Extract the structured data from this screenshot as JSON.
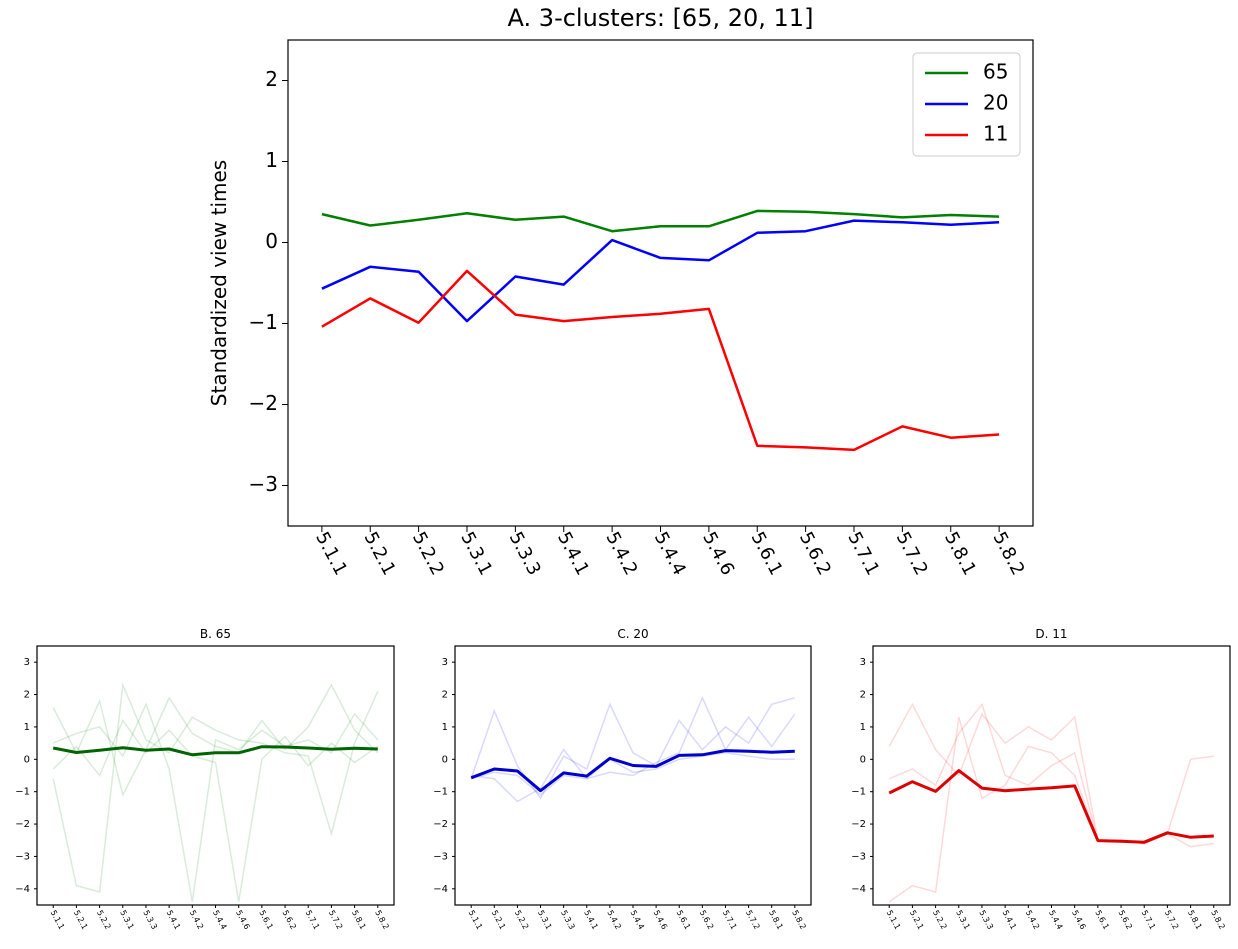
{
  "chart_data": [
    {
      "type": "line",
      "title": "A. 3-clusters: [65, 20, 11]",
      "ylabel": "Standardized view times",
      "categories": [
        "5.1.1",
        "5.2.1",
        "5.2.2",
        "5.3.1",
        "5.3.3",
        "5.4.1",
        "5.4.2",
        "5.4.4",
        "5.4.6",
        "5.6.1",
        "5.6.2",
        "5.7.1",
        "5.7.2",
        "5.8.1",
        "5.8.2"
      ],
      "ylim": [
        -3.5,
        2.5
      ],
      "yticks": [
        {
          "value": -3,
          "label": "−3"
        },
        {
          "value": -2,
          "label": "−2"
        },
        {
          "value": -1,
          "label": "−1"
        },
        0,
        1,
        2
      ],
      "legend": "upper right",
      "series": [
        {
          "name": "65",
          "color": "#008000",
          "values": [
            0.35,
            0.21,
            0.28,
            0.36,
            0.28,
            0.32,
            0.14,
            0.2,
            0.2,
            0.39,
            0.38,
            0.35,
            0.31,
            0.34,
            0.32
          ]
        },
        {
          "name": "20",
          "color": "#0000ff",
          "values": [
            -0.57,
            -0.3,
            -0.36,
            -0.97,
            -0.42,
            -0.52,
            0.03,
            -0.19,
            -0.22,
            0.12,
            0.14,
            0.27,
            0.25,
            0.22,
            0.25
          ]
        },
        {
          "name": "11",
          "color": "#ff0000",
          "values": [
            -1.04,
            -0.69,
            -0.99,
            -0.35,
            -0.89,
            -0.97,
            -0.92,
            -0.88,
            -0.82,
            -2.51,
            -2.53,
            -2.56,
            -2.27,
            -2.41,
            -2.37
          ]
        }
      ]
    },
    {
      "type": "line",
      "title": "B. 65",
      "categories": [
        "5.1.1",
        "5.2.1",
        "5.2.2",
        "5.3.1",
        "5.3.3",
        "5.4.1",
        "5.4.2",
        "5.4.4",
        "5.4.6",
        "5.6.1",
        "5.6.2",
        "5.7.1",
        "5.7.2",
        "5.8.1",
        "5.8.2"
      ],
      "ylim": [
        -4.5,
        3.5
      ],
      "yticks": [
        {
          "value": -4,
          "label": "−4"
        },
        {
          "value": -3,
          "label": "−3"
        },
        {
          "value": -2,
          "label": "−2"
        },
        {
          "value": -1,
          "label": "−1"
        },
        0,
        1,
        2,
        3
      ],
      "member_color": "#008000",
      "members": [
        [
          1.6,
          0.2,
          1.8,
          -1.1,
          0.3,
          1.9,
          0.8,
          0.4,
          0.2,
          1.2,
          0.3,
          1.0,
          2.3,
          0.9,
          0.2
        ],
        [
          -0.6,
          -3.9,
          -4.1,
          2.3,
          0.6,
          0.2,
          1.3,
          0.9,
          0.6,
          0.5,
          0.2,
          0.1,
          -2.3,
          0.5,
          2.1
        ],
        [
          0.5,
          0.8,
          1.0,
          0.1,
          1.7,
          -0.3,
          -4.4,
          0.6,
          0.3,
          0.9,
          0.4,
          0.6,
          0.2,
          1.4,
          0.6
        ],
        [
          -0.3,
          0.4,
          -0.5,
          1.2,
          0.2,
          0.9,
          0.1,
          -0.1,
          -4.4,
          0.0,
          0.7,
          -0.2,
          0.5,
          -0.1,
          0.4
        ]
      ],
      "series": [
        {
          "color": "#006400",
          "values": [
            0.35,
            0.21,
            0.28,
            0.36,
            0.28,
            0.32,
            0.14,
            0.2,
            0.2,
            0.39,
            0.38,
            0.35,
            0.31,
            0.34,
            0.32
          ]
        }
      ]
    },
    {
      "type": "line",
      "title": "C. 20",
      "categories": [
        "5.1.1",
        "5.2.1",
        "5.2.2",
        "5.3.1",
        "5.3.3",
        "5.4.1",
        "5.4.2",
        "5.4.4",
        "5.4.6",
        "5.6.1",
        "5.6.2",
        "5.7.1",
        "5.7.2",
        "5.8.1",
        "5.8.2"
      ],
      "ylim": [
        -4.5,
        3.5
      ],
      "yticks": [
        {
          "value": -4,
          "label": "−4"
        },
        {
          "value": -3,
          "label": "−3"
        },
        {
          "value": -2,
          "label": "−2"
        },
        {
          "value": -1,
          "label": "−1"
        },
        0,
        1,
        2,
        3
      ],
      "member_color": "#0000ff",
      "members": [
        [
          -0.6,
          1.5,
          -0.2,
          -1.2,
          0.1,
          -0.3,
          1.7,
          0.2,
          -0.2,
          1.2,
          0.3,
          1.0,
          0.5,
          1.7,
          1.9
        ],
        [
          -0.5,
          -0.6,
          -1.3,
          -0.9,
          0.3,
          -0.6,
          -0.4,
          -0.5,
          -0.1,
          0.2,
          1.9,
          0.3,
          1.3,
          0.4,
          1.4
        ],
        [
          -0.6,
          -0.4,
          -0.5,
          -1.1,
          -0.5,
          -0.6,
          0.0,
          -0.4,
          -0.3,
          0.0,
          0.1,
          0.2,
          0.1,
          0.0,
          0.0
        ]
      ],
      "series": [
        {
          "color": "#0000cd",
          "values": [
            -0.57,
            -0.3,
            -0.36,
            -0.97,
            -0.42,
            -0.52,
            0.03,
            -0.19,
            -0.22,
            0.12,
            0.14,
            0.27,
            0.25,
            0.22,
            0.25
          ]
        }
      ]
    },
    {
      "type": "line",
      "title": "D. 11",
      "categories": [
        "5.1.1",
        "5.2.1",
        "5.2.2",
        "5.3.1",
        "5.3.3",
        "5.4.1",
        "5.4.2",
        "5.4.4",
        "5.4.6",
        "5.6.1",
        "5.6.2",
        "5.7.1",
        "5.7.2",
        "5.8.1",
        "5.8.2"
      ],
      "ylim": [
        -4.5,
        3.5
      ],
      "yticks": [
        {
          "value": -4,
          "label": "−4"
        },
        {
          "value": -3,
          "label": "−3"
        },
        {
          "value": -2,
          "label": "−2"
        },
        {
          "value": -1,
          "label": "−1"
        },
        0,
        1,
        2,
        3
      ],
      "member_color": "#ff0000",
      "members": [
        [
          0.4,
          1.7,
          0.3,
          -0.5,
          1.4,
          0.5,
          1.0,
          0.6,
          1.3,
          -2.5,
          -2.5,
          -2.6,
          -2.3,
          -2.7,
          -2.6
        ],
        [
          -4.4,
          -3.9,
          -4.1,
          1.3,
          -1.2,
          -0.8,
          0.4,
          0.2,
          -0.5,
          -2.5,
          -2.5,
          -2.6,
          -2.3,
          0.0,
          0.1
        ],
        [
          -0.6,
          -0.3,
          -0.8,
          0.8,
          1.7,
          -0.5,
          -0.8,
          -0.2,
          0.2,
          -2.5,
          -2.5,
          -2.6,
          -2.3,
          -2.4,
          -2.4
        ]
      ],
      "series": [
        {
          "color": "#dd0000",
          "values": [
            -1.04,
            -0.69,
            -0.99,
            -0.35,
            -0.89,
            -0.97,
            -0.92,
            -0.88,
            -0.82,
            -2.51,
            -2.53,
            -2.56,
            -2.27,
            -2.41,
            -2.37
          ]
        }
      ]
    }
  ]
}
